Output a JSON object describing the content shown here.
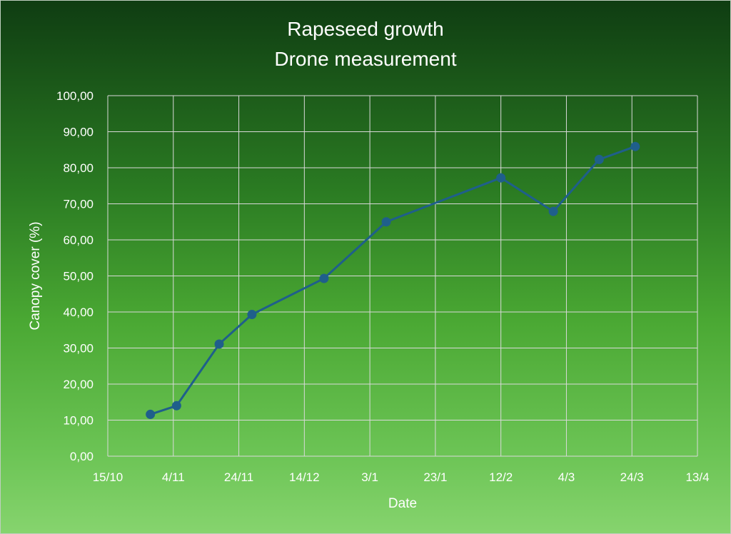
{
  "chart_data": {
    "type": "line",
    "title": [
      "Rapeseed growth",
      "Drone measurement"
    ],
    "xlabel": "Date",
    "ylabel": "Canopy cover (%)",
    "ylim": [
      0,
      100
    ],
    "yticks": [
      "0,00",
      "10,00",
      "20,00",
      "30,00",
      "40,00",
      "50,00",
      "60,00",
      "70,00",
      "80,00",
      "90,00",
      "100,00"
    ],
    "x_axis": {
      "range": [
        "15/10",
        "13/4"
      ],
      "ticks": [
        {
          "date": "15/10",
          "label": "15/10"
        },
        {
          "date": "4/11",
          "label": "4/11"
        },
        {
          "date": "24/11",
          "label": "24/11"
        },
        {
          "date": "14/12",
          "label": "14/12"
        },
        {
          "date": "3/1",
          "label": "3/1"
        },
        {
          "date": "23/1",
          "label": "23/1"
        },
        {
          "date": "12/2",
          "label": "12/2"
        },
        {
          "date": "4/3",
          "label": "4/3"
        },
        {
          "date": "24/3",
          "label": "24/3"
        },
        {
          "date": "13/4",
          "label": "13/4"
        }
      ]
    },
    "grid": true,
    "series": [
      {
        "color": "#1f5f8b",
        "points": [
          {
            "x": "28/10",
            "y": 11.6
          },
          {
            "x": "5/11",
            "y": 14.0
          },
          {
            "x": "18/11",
            "y": 31.1
          },
          {
            "x": "28/11",
            "y": 39.3
          },
          {
            "x": "20/12",
            "y": 49.3
          },
          {
            "x": "8/1",
            "y": 65.0
          },
          {
            "x": "12/2",
            "y": 77.2
          },
          {
            "x": "28/2",
            "y": 67.9
          },
          {
            "x": "14/3",
            "y": 82.3
          },
          {
            "x": "25/3",
            "y": 85.9
          }
        ]
      }
    ]
  }
}
